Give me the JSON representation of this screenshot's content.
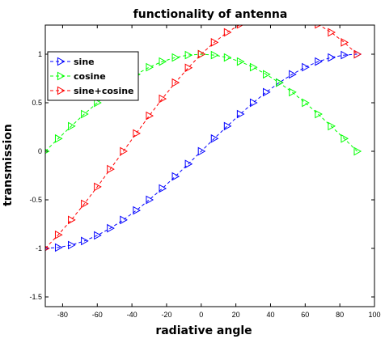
{
  "chart_data": {
    "type": "line",
    "title": "functionality of antenna",
    "xlabel": "radiative angle",
    "ylabel": "transmission",
    "xlim": [
      -90,
      100
    ],
    "ylim": [
      -1.6,
      1.3
    ],
    "xticks": [
      -80,
      -60,
      -40,
      -20,
      0,
      20,
      40,
      60,
      80,
      100
    ],
    "xtick_labels": [
      "-80",
      "-60",
      "-40",
      "-20",
      "0",
      "20",
      "40",
      "60",
      "80",
      "100"
    ],
    "yticks": [
      -1.5,
      -1,
      -0.5,
      0,
      0.5,
      1
    ],
    "ytick_labels": [
      "-1.5",
      "-1",
      "-0.5",
      "0",
      "0.5",
      "1"
    ],
    "grid": false,
    "legend_position": "top-left",
    "x": [
      -90,
      -82.5,
      -75,
      -67.5,
      -60,
      -52.5,
      -45,
      -37.5,
      -30,
      -22.5,
      -15,
      -7.5,
      0,
      7.5,
      15,
      22.5,
      30,
      37.5,
      45,
      52.5,
      60,
      67.5,
      75,
      82.5,
      90
    ],
    "series": [
      {
        "name": "sine",
        "color": "#0000ff",
        "marker": "triangle-right",
        "linestyle": "dashed",
        "values": [
          -1.0,
          -0.991,
          -0.966,
          -0.924,
          -0.866,
          -0.793,
          -0.707,
          -0.609,
          -0.5,
          -0.383,
          -0.259,
          -0.131,
          0.0,
          0.131,
          0.259,
          0.383,
          0.5,
          0.609,
          0.707,
          0.793,
          0.866,
          0.924,
          0.966,
          0.991,
          1.0
        ]
      },
      {
        "name": "cosine",
        "color": "#00ff00",
        "marker": "triangle-right",
        "linestyle": "dashed",
        "values": [
          0.0,
          0.131,
          0.259,
          0.383,
          0.5,
          0.609,
          0.707,
          0.793,
          0.866,
          0.924,
          0.966,
          0.991,
          1.0,
          0.991,
          0.966,
          0.924,
          0.866,
          0.793,
          0.707,
          0.609,
          0.5,
          0.383,
          0.259,
          0.131,
          0.0
        ]
      },
      {
        "name": "sine+cosine",
        "color": "#ff0000",
        "marker": "triangle-right",
        "linestyle": "dashed",
        "values": [
          -1.0,
          -0.86,
          -0.707,
          -0.541,
          -0.366,
          -0.184,
          0.0,
          0.184,
          0.366,
          0.541,
          0.707,
          0.86,
          1.0,
          1.122,
          1.225,
          1.307,
          1.366,
          1.402,
          1.414,
          1.402,
          1.366,
          1.307,
          1.225,
          1.122,
          1.0
        ]
      }
    ]
  }
}
